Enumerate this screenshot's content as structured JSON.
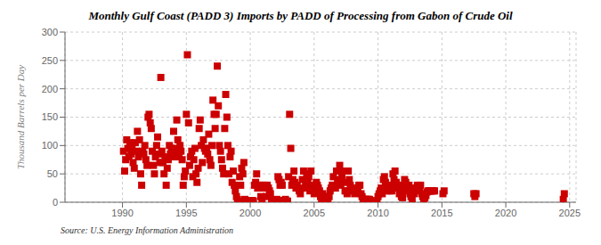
{
  "chart_data": {
    "type": "scatter",
    "title": "Monthly Gulf Coast (PADD 3) Imports by PADD of Processing from Gabon of Crude Oil",
    "ylabel": "Thousand Barrels per Day",
    "source": "Source: U.S. Energy Information Administration",
    "color": "#cc0000",
    "marker": "square",
    "grid": true,
    "xlim": [
      1985.5,
      2025.5
    ],
    "xticks": [
      1990,
      1995,
      2000,
      2005,
      2010,
      2015,
      2020,
      2025
    ],
    "ylim": [
      0,
      300
    ],
    "yticks": [
      0,
      50,
      100,
      150,
      200,
      250,
      300
    ],
    "x": [
      1990.08,
      1990.17,
      1990.25,
      1990.33,
      1990.42,
      1990.5,
      1990.58,
      1990.67,
      1990.75,
      1990.83,
      1990.92,
      1991.0,
      1991.08,
      1991.17,
      1991.25,
      1991.33,
      1991.42,
      1991.5,
      1991.58,
      1991.67,
      1991.75,
      1991.83,
      1991.92,
      1992.0,
      1992.08,
      1992.17,
      1992.25,
      1992.33,
      1992.42,
      1992.5,
      1992.58,
      1992.67,
      1992.75,
      1992.83,
      1992.92,
      1993.0,
      1993.08,
      1993.17,
      1993.25,
      1993.33,
      1993.42,
      1993.5,
      1993.58,
      1993.67,
      1993.75,
      1993.83,
      1993.92,
      1994.0,
      1994.08,
      1994.17,
      1994.25,
      1994.33,
      1994.42,
      1994.5,
      1994.58,
      1994.67,
      1994.75,
      1994.83,
      1994.92,
      1995.0,
      1995.08,
      1995.17,
      1995.25,
      1995.33,
      1995.42,
      1995.5,
      1995.58,
      1995.67,
      1995.75,
      1995.83,
      1995.92,
      1996.0,
      1996.08,
      1996.17,
      1996.25,
      1996.33,
      1996.42,
      1996.5,
      1996.58,
      1996.67,
      1996.75,
      1996.83,
      1996.92,
      1997.0,
      1997.08,
      1997.17,
      1997.25,
      1997.33,
      1997.42,
      1997.5,
      1997.58,
      1997.67,
      1997.75,
      1997.83,
      1997.92,
      1998.0,
      1998.08,
      1998.17,
      1998.25,
      1998.33,
      1998.42,
      1998.5,
      1998.58,
      1998.67,
      1998.75,
      1998.83,
      1998.92,
      1999.0,
      1999.08,
      1999.17,
      1999.25,
      1999.33,
      1999.42,
      1999.5,
      1999.58,
      1999.67,
      1999.75,
      1999.83,
      1999.92,
      2000.0,
      2000.08,
      2000.17,
      2000.25,
      2000.33,
      2000.42,
      2000.5,
      2000.58,
      2000.67,
      2000.75,
      2000.83,
      2000.92,
      2001.0,
      2001.08,
      2001.17,
      2001.25,
      2001.33,
      2001.42,
      2001.5,
      2001.58,
      2001.67,
      2001.75,
      2001.83,
      2001.92,
      2002.0,
      2002.08,
      2002.17,
      2002.25,
      2002.33,
      2002.42,
      2002.5,
      2002.58,
      2002.67,
      2002.75,
      2002.83,
      2002.92,
      2003.0,
      2003.08,
      2003.17,
      2003.25,
      2003.33,
      2003.42,
      2003.5,
      2003.58,
      2003.67,
      2003.75,
      2003.83,
      2003.92,
      2004.0,
      2004.08,
      2004.17,
      2004.25,
      2004.33,
      2004.42,
      2004.5,
      2004.58,
      2004.67,
      2004.75,
      2004.83,
      2004.92,
      2005.0,
      2005.08,
      2005.17,
      2005.25,
      2005.33,
      2005.42,
      2005.5,
      2005.58,
      2005.67,
      2005.75,
      2005.83,
      2005.92,
      2006.0,
      2006.08,
      2006.17,
      2006.25,
      2006.33,
      2006.42,
      2006.5,
      2006.58,
      2006.67,
      2006.75,
      2006.83,
      2006.92,
      2007.0,
      2007.08,
      2007.17,
      2007.25,
      2007.33,
      2007.42,
      2007.5,
      2007.58,
      2007.67,
      2007.75,
      2007.83,
      2007.92,
      2008.0,
      2008.08,
      2008.17,
      2008.25,
      2008.33,
      2008.42,
      2008.5,
      2008.58,
      2008.67,
      2008.75,
      2008.83,
      2008.92,
      2009.0,
      2009.08,
      2009.17,
      2009.25,
      2009.33,
      2009.42,
      2009.5,
      2009.58,
      2009.67,
      2009.75,
      2009.83,
      2009.92,
      2010.0,
      2010.08,
      2010.17,
      2010.25,
      2010.33,
      2010.42,
      2010.5,
      2010.58,
      2010.67,
      2010.75,
      2010.83,
      2010.92,
      2011.0,
      2011.08,
      2011.17,
      2011.25,
      2011.33,
      2011.42,
      2011.5,
      2011.58,
      2011.67,
      2011.75,
      2011.83,
      2011.92,
      2012.0,
      2012.08,
      2012.17,
      2012.25,
      2012.33,
      2012.42,
      2012.5,
      2012.58,
      2012.67,
      2012.75,
      2012.83,
      2012.92,
      2013.0,
      2013.08,
      2013.17,
      2013.25,
      2013.33,
      2013.42,
      2013.5,
      2013.58,
      2013.67,
      2013.75,
      2013.83,
      2013.92,
      2014.0,
      2014.08,
      2014.17,
      2014.25,
      2014.33,
      2014.42,
      2015.08,
      2015.17,
      2017.5,
      2017.58,
      2017.67,
      2024.5,
      2024.58
    ],
    "values": [
      90,
      55,
      75,
      110,
      95,
      80,
      105,
      85,
      95,
      70,
      60,
      105,
      90,
      125,
      80,
      110,
      50,
      30,
      90,
      85,
      100,
      75,
      65,
      150,
      155,
      140,
      130,
      90,
      65,
      50,
      80,
      100,
      115,
      85,
      70,
      220,
      90,
      70,
      50,
      80,
      30,
      60,
      75,
      100,
      85,
      95,
      80,
      125,
      95,
      90,
      145,
      110,
      80,
      100,
      90,
      75,
      30,
      45,
      55,
      155,
      260,
      140,
      65,
      80,
      90,
      45,
      75,
      95,
      50,
      35,
      60,
      130,
      145,
      100,
      70,
      110,
      95,
      90,
      95,
      85,
      120,
      75,
      65,
      100,
      180,
      155,
      130,
      155,
      240,
      170,
      100,
      90,
      75,
      60,
      50,
      130,
      190,
      150,
      100,
      50,
      80,
      90,
      35,
      55,
      30,
      20,
      10,
      5,
      2,
      45,
      30,
      60,
      50,
      70,
      5,
      2,
      3,
      2,
      2,
      2,
      2,
      3,
      2,
      30,
      35,
      50,
      25,
      30,
      30,
      10,
      5,
      30,
      25,
      30,
      10,
      30,
      25,
      20,
      15,
      3,
      2,
      2,
      1,
      2,
      5,
      45,
      40,
      30,
      35,
      30,
      3,
      3,
      5,
      2,
      2,
      45,
      155,
      95,
      30,
      40,
      55,
      35,
      25,
      30,
      25,
      20,
      15,
      25,
      40,
      55,
      25,
      30,
      50,
      35,
      45,
      20,
      55,
      30,
      25,
      15,
      20,
      35,
      30,
      25,
      20,
      10,
      5,
      15,
      10,
      8,
      5,
      5,
      5,
      10,
      20,
      25,
      30,
      45,
      30,
      25,
      55,
      40,
      35,
      65,
      30,
      45,
      55,
      35,
      20,
      20,
      15,
      55,
      40,
      30,
      25,
      20,
      20,
      15,
      25,
      20,
      25,
      30,
      30,
      15,
      10,
      5,
      2,
      5,
      5,
      5,
      5,
      5,
      2,
      2,
      2,
      2,
      2,
      2,
      2,
      10,
      15,
      20,
      25,
      15,
      40,
      45,
      35,
      20,
      25,
      30,
      20,
      30,
      20,
      50,
      40,
      55,
      35,
      30,
      25,
      15,
      20,
      10,
      8,
      30,
      40,
      35,
      20,
      25,
      30,
      15,
      10,
      5,
      20,
      15,
      25,
      25,
      30,
      20,
      25,
      30,
      15,
      10,
      5,
      8,
      12,
      18,
      20,
      20,
      20,
      20,
      20,
      20,
      20,
      15,
      20,
      15,
      10,
      15,
      5,
      15
    ]
  }
}
